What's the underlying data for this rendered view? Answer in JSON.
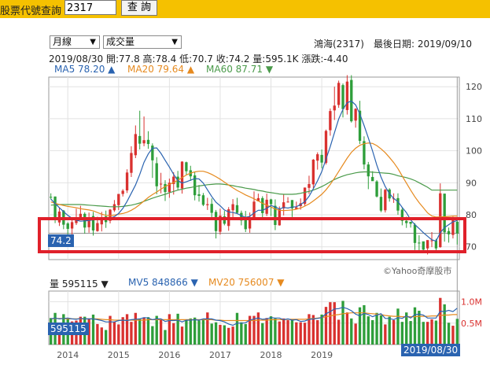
{
  "toolbar": {
    "label": "股票代號查詢",
    "input_value": "2317",
    "button_label": "查 詢"
  },
  "selectors": {
    "period": "月線",
    "indicator": "成交量"
  },
  "info": {
    "stock": "鴻海(2317)",
    "last_date_label": "最後日期: 2019/09/10",
    "ohlc": "2019/08/30  開:77.8  高:78.4  低:70.7  收:74.2  量:595.1K  漲跌:-4.40",
    "ma5": "MA5 78.20 ▲",
    "ma20": "MA20 79.64 ▲",
    "ma60": "MA60 87.71 ▼"
  },
  "vol_info": {
    "vol": "量 595115 ▼",
    "mv5": "MV5 848866 ▼",
    "mv20": "MV20 756007 ▼"
  },
  "badges": {
    "price": "74.2",
    "volume": "595115",
    "date": "2019/08/30"
  },
  "watermark": "©Yahoo奇摩股市",
  "colors": {
    "topbar": "#f5c100",
    "up": "#d9312f",
    "down": "#2e9e3a",
    "ma5": "#2a63b0",
    "ma20": "#e68a1f",
    "ma60": "#4a9a4a",
    "highlight": "#e0202a"
  },
  "chart_data": {
    "type": "candlestick",
    "price_ticks": [
      70,
      80,
      90,
      100,
      110,
      120
    ],
    "x_ticks": [
      "2014",
      "2015",
      "2016",
      "2017",
      "2018",
      "2019"
    ],
    "volume_ticks": [
      "1.0M",
      "0.5M"
    ],
    "candles": [
      [
        85.6,
        85.5,
        86.7,
        84.8
      ],
      [
        85.7,
        79.2,
        85.7,
        77.4
      ],
      [
        77.6,
        81.0,
        82.1,
        76.5
      ],
      [
        81.3,
        76.9,
        81.5,
        75.5
      ],
      [
        77.3,
        75.6,
        77.7,
        73.4
      ],
      [
        75.7,
        77.7,
        78.6,
        73.7
      ],
      [
        77.4,
        79.2,
        81.9,
        76.8
      ],
      [
        78.7,
        80.3,
        82.8,
        78.5
      ],
      [
        80.3,
        76.0,
        80.8,
        74.1
      ],
      [
        76.1,
        79.2,
        80.7,
        74.4
      ],
      [
        79.6,
        75.1,
        80.9,
        73.5
      ],
      [
        74.9,
        77.4,
        79.4,
        74.7
      ],
      [
        77.0,
        79.2,
        80.9,
        74.8
      ],
      [
        79.5,
        77.7,
        81.3,
        75.9
      ],
      [
        78.1,
        81.6,
        81.8,
        77.3
      ],
      [
        81.4,
        83.3,
        84.6,
        80.9
      ],
      [
        83.0,
        86.5,
        86.5,
        81.5
      ],
      [
        86.5,
        87.5,
        88.0,
        85.7
      ],
      [
        87.6,
        93.2,
        94.2,
        86.8
      ],
      [
        93.1,
        99.3,
        101.4,
        91.8
      ],
      [
        98.6,
        105.2,
        107.9,
        97.7
      ],
      [
        104.6,
        102.2,
        112.5,
        100.4
      ],
      [
        102.3,
        103.3,
        110.7,
        101.4
      ],
      [
        103.4,
        102.1,
        106.1,
        100.6
      ],
      [
        101.6,
        97.0,
        102.3,
        91.5
      ],
      [
        96.1,
        88.9,
        98.0,
        86.4
      ],
      [
        89.7,
        89.7,
        93.1,
        86.7
      ],
      [
        89.6,
        87.1,
        90.8,
        84.3
      ],
      [
        87.1,
        90.0,
        91.3,
        85.3
      ],
      [
        89.6,
        91.9,
        93.3,
        86.3
      ],
      [
        91.9,
        88.5,
        93.7,
        87.6
      ],
      [
        88.2,
        96.6,
        96.7,
        86.6
      ],
      [
        96.4,
        93.6,
        96.6,
        92.3
      ],
      [
        93.9,
        92.0,
        95.3,
        90.6
      ],
      [
        92.3,
        86.1,
        93.3,
        84.5
      ],
      [
        86.4,
        85.9,
        89.3,
        84.1
      ],
      [
        86.1,
        83.1,
        86.8,
        82.7
      ],
      [
        83.0,
        83.3,
        85.3,
        81.5
      ],
      [
        83.4,
        80.6,
        85.1,
        78.6
      ],
      [
        80.9,
        74.9,
        81.5,
        72.6
      ],
      [
        74.7,
        79.7,
        81.9,
        73.8
      ],
      [
        79.5,
        77.2,
        81.2,
        76.7
      ],
      [
        76.5,
        81.7,
        82.4,
        75.0
      ],
      [
        81.4,
        83.3,
        84.9,
        78.9
      ],
      [
        83.0,
        80.6,
        85.3,
        80.2
      ],
      [
        80.6,
        78.2,
        81.3,
        76.7
      ],
      [
        78.5,
        75.5,
        81.2,
        74.6
      ],
      [
        75.7,
        78.8,
        80.7,
        74.4
      ],
      [
        78.8,
        84.1,
        87.3,
        78.5
      ],
      [
        84.2,
        85.2,
        86.6,
        84.3
      ],
      [
        85.2,
        80.5,
        85.8,
        79.0
      ],
      [
        80.3,
        84.7,
        86.6,
        79.6
      ],
      [
        84.8,
        83.3,
        85.0,
        79.6
      ],
      [
        82.8,
        76.8,
        84.8,
        75.2
      ],
      [
        76.7,
        81.7,
        82.6,
        76.6
      ],
      [
        82.0,
        83.9,
        86.4,
        79.8
      ],
      [
        84.1,
        84.1,
        85.5,
        83.8
      ],
      [
        84.6,
        82.0,
        84.6,
        79.3
      ],
      [
        81.8,
        82.3,
        84.1,
        81.8
      ],
      [
        82.7,
        83.6,
        85.1,
        81.6
      ],
      [
        83.4,
        88.5,
        88.5,
        82.8
      ],
      [
        88.4,
        89.6,
        92.2,
        86.5
      ],
      [
        89.5,
        97.2,
        97.4,
        88.2
      ],
      [
        96.9,
        98.9,
        99.5,
        94.1
      ],
      [
        98.7,
        96.3,
        100.4,
        94.5
      ],
      [
        96.2,
        106.2,
        106.6,
        95.7
      ],
      [
        106.4,
        112.4,
        113.2,
        104.7
      ],
      [
        112.6,
        114.1,
        120.0,
        109.6
      ],
      [
        114.3,
        121.2,
        121.9,
        113.4
      ],
      [
        120.5,
        113.0,
        121.0,
        110.4
      ],
      [
        112.7,
        121.6,
        123.6,
        111.3
      ],
      [
        122.1,
        109.2,
        123.6,
        108.8
      ],
      [
        109.4,
        113.1,
        113.3,
        107.2
      ],
      [
        112.5,
        103.1,
        115.6,
        102.1
      ],
      [
        103.0,
        95.7,
        104.5,
        94.2
      ],
      [
        95.7,
        92.0,
        96.5,
        88.0
      ],
      [
        91.8,
        90.5,
        93.6,
        90.7
      ],
      [
        90.4,
        85.7,
        90.8,
        85.4
      ],
      [
        85.6,
        81.3,
        88.2,
        80.8
      ],
      [
        81.4,
        87.8,
        88.1,
        80.7
      ],
      [
        87.9,
        85.1,
        88.3,
        84.1
      ],
      [
        85.1,
        85.1,
        86.7,
        83.7
      ],
      [
        85.2,
        81.3,
        86.7,
        80.0
      ],
      [
        81.6,
        78.1,
        82.3,
        76.7
      ],
      [
        78.1,
        77.4,
        79.4,
        75.9
      ],
      [
        77.8,
        77.2,
        77.8,
        76.0
      ],
      [
        76.9,
        71.2,
        77.4,
        69.0
      ],
      [
        71.3,
        71.2,
        73.6,
        68.7
      ],
      [
        71.7,
        69.1,
        71.3,
        68.4
      ],
      [
        69.5,
        72.1,
        72.0,
        67.6
      ],
      [
        71.8,
        72.0,
        74.6,
        69.9
      ],
      [
        72.0,
        69.5,
        72.5,
        68.4
      ],
      [
        69.9,
        86.7,
        89.8,
        69.7
      ],
      [
        86.6,
        74.5,
        86.6,
        71.6
      ],
      [
        74.9,
        73.9,
        76.0,
        71.3
      ],
      [
        73.7,
        78.6,
        79.4,
        72.6
      ],
      [
        77.8,
        74.2,
        78.4,
        70.7
      ]
    ],
    "volume": [
      0.62,
      0.74,
      0.42,
      0.71,
      0.61,
      0.54,
      0.56,
      0.65,
      0.65,
      0.61,
      0.7,
      0.48,
      0.4,
      0.34,
      0.67,
      0.53,
      0.47,
      0.64,
      0.71,
      0.53,
      0.74,
      0.6,
      0.63,
      0.64,
      0.43,
      0.67,
      0.6,
      0.34,
      0.71,
      0.5,
      0.72,
      0.42,
      0.58,
      0.61,
      0.63,
      0.56,
      0.57,
      0.75,
      0.49,
      0.52,
      0.46,
      0.45,
      0.39,
      0.42,
      0.74,
      0.52,
      0.48,
      0.67,
      0.67,
      0.75,
      0.5,
      0.62,
      0.66,
      0.61,
      0.54,
      0.61,
      0.57,
      0.58,
      0.52,
      0.52,
      0.51,
      0.71,
      0.69,
      0.57,
      0.7,
      0.88,
      0.99,
      0.99,
      0.58,
      1.02,
      0.75,
      0.61,
      0.49,
      0.87,
      0.92,
      0.66,
      0.57,
      0.74,
      0.68,
      0.47,
      0.65,
      0.57,
      0.84,
      0.53,
      0.75,
      0.55,
      0.87,
      0.79,
      0.53,
      0.53,
      0.59,
      0.56,
      1.09,
      0.94,
      0.51,
      0.44,
      0.6
    ],
    "ma5": [
      84.9,
      83.5,
      82.2,
      81.0,
      79.8,
      78.9,
      78.3,
      78.0,
      78.1,
      78.2,
      78.4,
      78.5,
      78.7,
      78.8,
      79.0,
      79.4,
      80.4,
      82.0,
      84.2,
      86.7,
      89.3,
      92.6,
      96.4,
      99.0,
      100.8,
      100.9,
      99.2,
      97.0,
      94.9,
      92.6,
      90.7,
      89.9,
      90.3,
      90.8,
      91.3,
      91.2,
      89.9,
      87.8,
      85.7,
      83.9,
      82.8,
      81.5,
      80.9,
      80.7,
      80.4,
      79.7,
      79.2,
      79.5,
      80.6,
      81.4,
      81.4,
      82.0,
      82.9,
      82.4,
      81.8,
      82.3,
      82.1,
      82.4,
      82.5,
      83.2,
      84.1,
      85.8,
      88.1,
      90.6,
      93.5,
      97.4,
      101.3,
      105.6,
      109.9,
      112.9,
      115.0,
      115.5,
      114.3,
      111.5,
      107.9,
      104.0,
      99.9,
      95.5,
      91.8,
      88.8,
      86.6,
      85.1,
      84.1,
      82.3,
      80.7,
      78.4,
      76.9,
      75.7,
      74.4,
      73.3,
      72.2,
      71.8,
      74.4,
      76.0,
      76.9,
      77.8,
      78.2
    ],
    "ma20": [
      84.0,
      83.6,
      83.2,
      82.9,
      82.6,
      82.4,
      82.2,
      81.9,
      81.7,
      81.5,
      81.2,
      80.7,
      80.2,
      79.8,
      79.7,
      79.9,
      80.2,
      80.4,
      80.8,
      81.4,
      82.2,
      83.2,
      84.3,
      85.4,
      86.3,
      87.1,
      88.0,
      88.8,
      89.5,
      90.1,
      90.8,
      91.6,
      92.4,
      93.0,
      93.4,
      93.6,
      93.6,
      93.2,
      92.6,
      91.9,
      91.1,
      90.2,
      89.3,
      88.4,
      87.6,
      86.9,
      86.2,
      85.6,
      85.0,
      84.3,
      83.6,
      83.0,
      82.4,
      81.8,
      81.4,
      81.3,
      81.4,
      81.5,
      81.7,
      82.1,
      82.7,
      83.4,
      84.3,
      85.3,
      86.4,
      87.8,
      89.5,
      91.4,
      93.5,
      95.6,
      97.7,
      99.5,
      100.8,
      101.7,
      102.2,
      102.4,
      102.3,
      101.6,
      100.6,
      99.4,
      97.9,
      96.3,
      94.4,
      92.1,
      89.9,
      87.7,
      85.6,
      83.8,
      82.2,
      80.6,
      79.6,
      79.3,
      79.3,
      79.4,
      79.5,
      79.6,
      79.6
    ],
    "ma60": [
      83.0,
      83.1,
      83.2,
      83.2,
      83.2,
      83.2,
      83.2,
      83.2,
      83.1,
      83.0,
      82.9,
      82.8,
      82.7,
      82.6,
      82.5,
      82.5,
      82.5,
      82.6,
      82.8,
      83.0,
      83.3,
      83.7,
      84.2,
      84.7,
      85.2,
      85.6,
      86.0,
      86.4,
      86.9,
      87.3,
      87.7,
      88.0,
      88.3,
      88.5,
      88.8,
      89.0,
      89.2,
      89.4,
      89.5,
      89.6,
      89.6,
      89.5,
      89.3,
      89.1,
      88.8,
      88.6,
      88.3,
      88.1,
      87.9,
      87.6,
      87.4,
      87.1,
      86.9,
      86.7,
      86.5,
      86.4,
      86.4,
      86.4,
      86.5,
      86.7,
      87.0,
      87.3,
      87.7,
      88.2,
      88.8,
      89.5,
      90.3,
      91.0,
      91.6,
      92.1,
      92.5,
      92.8,
      93.1,
      93.3,
      93.4,
      93.4,
      93.3,
      93.2,
      93.1,
      93.0,
      92.9,
      92.6,
      92.2,
      91.9,
      91.6,
      91.2,
      90.7,
      90.0,
      89.3,
      88.6,
      87.7,
      87.7,
      87.7,
      87.7,
      87.7,
      87.7,
      87.7
    ],
    "mv5": [
      0.6,
      0.62,
      0.6,
      0.61,
      0.62,
      0.6,
      0.59,
      0.61,
      0.6,
      0.6,
      0.6,
      0.58,
      0.56,
      0.53,
      0.53,
      0.53,
      0.56,
      0.57,
      0.56,
      0.58,
      0.59,
      0.6,
      0.63,
      0.62,
      0.58,
      0.6,
      0.6,
      0.54,
      0.56,
      0.56,
      0.57,
      0.53,
      0.57,
      0.57,
      0.58,
      0.57,
      0.6,
      0.6,
      0.6,
      0.57,
      0.56,
      0.53,
      0.48,
      0.45,
      0.5,
      0.5,
      0.51,
      0.57,
      0.6,
      0.62,
      0.59,
      0.6,
      0.63,
      0.62,
      0.62,
      0.58,
      0.6,
      0.57,
      0.58,
      0.54,
      0.55,
      0.59,
      0.6,
      0.61,
      0.63,
      0.72,
      0.77,
      0.83,
      0.84,
      0.87,
      0.84,
      0.79,
      0.71,
      0.67,
      0.73,
      0.7,
      0.65,
      0.69,
      0.72,
      0.61,
      0.61,
      0.58,
      0.63,
      0.61,
      0.67,
      0.62,
      0.7,
      0.71,
      0.69,
      0.62,
      0.62,
      0.62,
      0.78,
      0.77,
      0.8,
      0.77,
      0.85
    ],
    "mv20": [
      0.6,
      0.61,
      0.61,
      0.61,
      0.6,
      0.6,
      0.6,
      0.6,
      0.6,
      0.6,
      0.6,
      0.6,
      0.59,
      0.58,
      0.58,
      0.57,
      0.57,
      0.57,
      0.57,
      0.57,
      0.57,
      0.57,
      0.57,
      0.58,
      0.58,
      0.58,
      0.58,
      0.58,
      0.58,
      0.58,
      0.58,
      0.58,
      0.58,
      0.58,
      0.58,
      0.58,
      0.58,
      0.58,
      0.58,
      0.57,
      0.57,
      0.56,
      0.56,
      0.56,
      0.56,
      0.56,
      0.56,
      0.56,
      0.56,
      0.57,
      0.57,
      0.57,
      0.58,
      0.58,
      0.58,
      0.58,
      0.59,
      0.59,
      0.59,
      0.59,
      0.59,
      0.6,
      0.61,
      0.62,
      0.63,
      0.65,
      0.67,
      0.69,
      0.7,
      0.72,
      0.73,
      0.74,
      0.74,
      0.74,
      0.74,
      0.73,
      0.72,
      0.71,
      0.7,
      0.68,
      0.67,
      0.66,
      0.66,
      0.65,
      0.65,
      0.65,
      0.65,
      0.66,
      0.66,
      0.66,
      0.67,
      0.67,
      0.68,
      0.69,
      0.69,
      0.7,
      0.7
    ]
  }
}
